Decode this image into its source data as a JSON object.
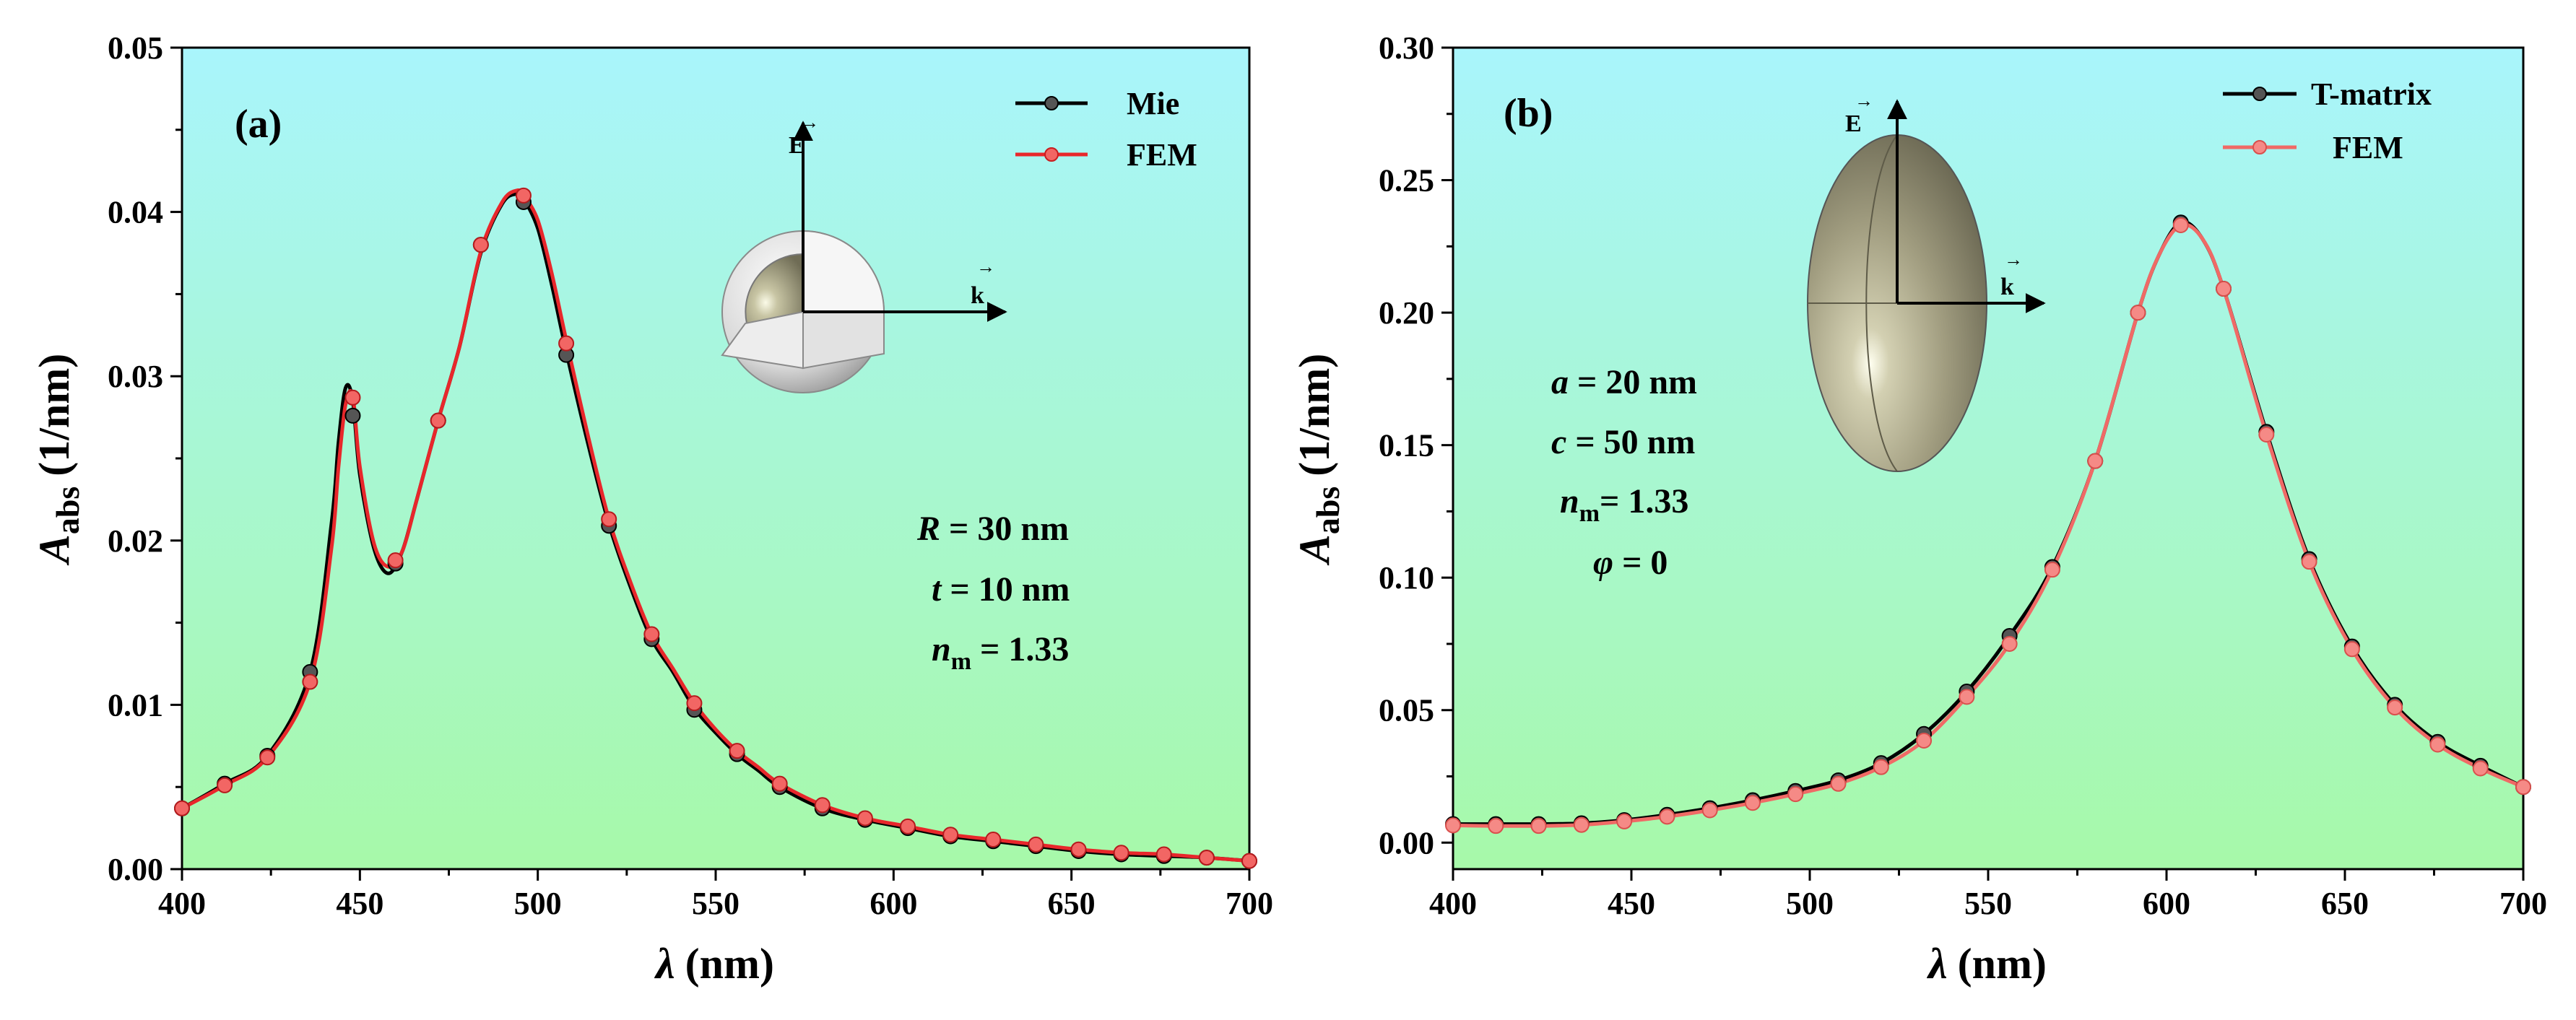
{
  "colors": {
    "bg_top": "#a9f5fc",
    "bg_bottom": "#a7f9a9",
    "series_black": "#000000",
    "series_red": "#e8272b",
    "series_salmon": "#f06a66"
  },
  "chart_data": [
    {
      "type": "line",
      "panel_label": "(a)",
      "xlabel": "λ (nm)",
      "ylabel": "Aabs (1/nm)",
      "ylabel_var": "A",
      "ylabel_sub": "abs",
      "ylabel_unit": "(1/nm)",
      "xlabel_var": "λ",
      "xlabel_unit": "(nm)",
      "xlim": [
        400,
        700
      ],
      "ylim": [
        0,
        0.05
      ],
      "xticks": [
        400,
        450,
        500,
        550,
        600,
        650,
        700
      ],
      "yticks": [
        "0.00",
        "0.01",
        "0.02",
        "0.03",
        "0.04",
        "0.05"
      ],
      "ytick_values": [
        0,
        0.01,
        0.02,
        0.03,
        0.04,
        0.05
      ],
      "legend": {
        "position": "top-right",
        "entries": [
          "Mie",
          "FEM"
        ]
      },
      "annotations": [
        {
          "var": "R",
          "text": " = 30 nm"
        },
        {
          "var": "t",
          "text": " = 10 nm"
        },
        {
          "var": "n",
          "sub": "m",
          "text": " = 1.33"
        }
      ],
      "inset": {
        "shape": "core-shell sphere",
        "e_label": "E",
        "k_label": "k"
      },
      "series": [
        {
          "name": "Mie",
          "color": "#000000",
          "x": [
            400,
            412,
            424,
            436,
            442,
            444,
            446,
            448,
            450,
            454,
            458,
            462,
            466,
            472,
            478,
            484,
            490,
            494,
            496,
            500,
            504,
            508,
            514,
            520,
            526,
            532,
            538,
            544,
            550,
            556,
            562,
            568,
            580,
            592,
            604,
            616,
            628,
            640,
            652,
            664,
            676,
            688,
            700
          ],
          "y": [
            0.0037,
            0.0052,
            0.0069,
            0.012,
            0.021,
            0.026,
            0.0293,
            0.0285,
            0.024,
            0.0195,
            0.018,
            0.0194,
            0.0225,
            0.0273,
            0.0318,
            0.0375,
            0.0405,
            0.0411,
            0.0408,
            0.039,
            0.0355,
            0.0315,
            0.026,
            0.021,
            0.0172,
            0.014,
            0.012,
            0.0098,
            0.0083,
            0.007,
            0.006,
            0.005,
            0.0037,
            0.003,
            0.0025,
            0.002,
            0.0017,
            0.0014,
            0.0011,
            0.0009,
            0.0008,
            0.0007,
            0.0005
          ],
          "markers_x": [
            400,
            412,
            424,
            436,
            448,
            460,
            472,
            484,
            496,
            508,
            520,
            532,
            544,
            556,
            568,
            580,
            592,
            604,
            616,
            628,
            640,
            652,
            664,
            676,
            688,
            700
          ],
          "markers_y": [
            0.0037,
            0.0052,
            0.0069,
            0.012,
            0.0276,
            0.0186,
            0.0273,
            0.038,
            0.0406,
            0.0313,
            0.0209,
            0.014,
            0.0097,
            0.007,
            0.005,
            0.0037,
            0.003,
            0.0025,
            0.002,
            0.0017,
            0.0014,
            0.0011,
            0.0009,
            0.0008,
            0.0007,
            0.0005
          ]
        },
        {
          "name": "FEM",
          "color": "#e8272b",
          "x": [
            400,
            412,
            424,
            436,
            442,
            444,
            446,
            448,
            450,
            454,
            458,
            462,
            466,
            472,
            478,
            484,
            490,
            494,
            496,
            500,
            504,
            508,
            514,
            520,
            526,
            532,
            538,
            544,
            550,
            556,
            562,
            568,
            580,
            592,
            604,
            616,
            628,
            640,
            652,
            664,
            676,
            688,
            700
          ],
          "y": [
            0.0037,
            0.0051,
            0.0068,
            0.0114,
            0.0195,
            0.0245,
            0.0283,
            0.0288,
            0.0245,
            0.0198,
            0.0184,
            0.0194,
            0.0225,
            0.0273,
            0.0318,
            0.0376,
            0.0406,
            0.0413,
            0.041,
            0.0395,
            0.0362,
            0.0322,
            0.0265,
            0.0213,
            0.0175,
            0.0143,
            0.0122,
            0.0101,
            0.0085,
            0.0072,
            0.0062,
            0.0052,
            0.0039,
            0.0031,
            0.0026,
            0.0021,
            0.0018,
            0.0015,
            0.0012,
            0.001,
            0.0009,
            0.0007,
            0.0005
          ],
          "markers_x": [
            400,
            412,
            424,
            436,
            448,
            460,
            472,
            484,
            496,
            508,
            520,
            532,
            544,
            556,
            568,
            580,
            592,
            604,
            616,
            628,
            640,
            652,
            664,
            676,
            688,
            700
          ],
          "markers_y": [
            0.0037,
            0.0051,
            0.0068,
            0.0114,
            0.0287,
            0.0188,
            0.0273,
            0.038,
            0.041,
            0.032,
            0.0213,
            0.0143,
            0.0101,
            0.0072,
            0.0052,
            0.0039,
            0.0031,
            0.0026,
            0.0021,
            0.0018,
            0.0015,
            0.0012,
            0.001,
            0.0009,
            0.0007,
            0.0005
          ]
        }
      ]
    },
    {
      "type": "line",
      "panel_label": "(b)",
      "xlabel": "λ (nm)",
      "ylabel": "Aabs (1/nm)",
      "ylabel_var": "A",
      "ylabel_sub": "abs",
      "ylabel_unit": "(1/nm)",
      "xlabel_var": "λ",
      "xlabel_unit": "(nm)",
      "xlim": [
        400,
        700
      ],
      "ylim": [
        -0.01,
        0.3
      ],
      "xticks": [
        400,
        450,
        500,
        550,
        600,
        650,
        700
      ],
      "yticks": [
        "0.00",
        "0.05",
        "0.10",
        "0.15",
        "0.20",
        "0.25",
        "0.30"
      ],
      "ytick_values": [
        0,
        0.05,
        0.1,
        0.15,
        0.2,
        0.25,
        0.3
      ],
      "legend": {
        "position": "top-right",
        "entries": [
          "T-matrix",
          "FEM"
        ]
      },
      "annotations": [
        {
          "var": "a",
          "text": " = 20 nm"
        },
        {
          "var": "c",
          "text": " = 50 nm"
        },
        {
          "var": "n",
          "sub": "m",
          "text": "= 1.33"
        },
        {
          "var": "φ",
          "text": " = 0"
        }
      ],
      "inset": {
        "shape": "prolate spheroid",
        "e_label": "E",
        "k_label": "k"
      },
      "series": [
        {
          "name": "T-matrix",
          "color": "#000000",
          "x": [
            400,
            412,
            424,
            436,
            448,
            460,
            472,
            484,
            496,
            508,
            520,
            532,
            544,
            556,
            568,
            580,
            592,
            598,
            604,
            610,
            616,
            628,
            640,
            652,
            664,
            676,
            688,
            700
          ],
          "y": [
            0.007,
            0.007,
            0.007,
            0.0073,
            0.0085,
            0.0105,
            0.013,
            0.016,
            0.0195,
            0.0235,
            0.03,
            0.041,
            0.057,
            0.078,
            0.104,
            0.144,
            0.2,
            0.222,
            0.234,
            0.228,
            0.209,
            0.155,
            0.107,
            0.074,
            0.052,
            0.038,
            0.029,
            0.021
          ],
          "markers_x": [
            400,
            412,
            424,
            436,
            448,
            460,
            472,
            484,
            496,
            508,
            520,
            532,
            544,
            556,
            568,
            580,
            592,
            604,
            616,
            628,
            640,
            652,
            664,
            676,
            688,
            700
          ],
          "markers_y": [
            0.007,
            0.007,
            0.007,
            0.0073,
            0.0085,
            0.0105,
            0.013,
            0.016,
            0.0195,
            0.0235,
            0.03,
            0.041,
            0.057,
            0.078,
            0.104,
            0.144,
            0.2,
            0.234,
            0.209,
            0.155,
            0.107,
            0.074,
            0.052,
            0.038,
            0.029,
            0.021
          ]
        },
        {
          "name": "FEM",
          "color": "#f06a66",
          "x": [
            400,
            412,
            424,
            436,
            448,
            460,
            472,
            484,
            496,
            508,
            520,
            532,
            544,
            556,
            568,
            580,
            592,
            598,
            604,
            610,
            616,
            628,
            640,
            652,
            664,
            676,
            688,
            700
          ],
          "y": [
            0.0065,
            0.0063,
            0.0063,
            0.0067,
            0.008,
            0.0098,
            0.0122,
            0.015,
            0.0183,
            0.0222,
            0.0285,
            0.0385,
            0.055,
            0.075,
            0.103,
            0.144,
            0.2,
            0.222,
            0.233,
            0.228,
            0.209,
            0.154,
            0.106,
            0.073,
            0.051,
            0.037,
            0.028,
            0.021
          ],
          "markers_x": [
            400,
            412,
            424,
            436,
            448,
            460,
            472,
            484,
            496,
            508,
            520,
            532,
            544,
            556,
            568,
            580,
            592,
            604,
            616,
            628,
            640,
            652,
            664,
            676,
            688,
            700
          ],
          "markers_y": [
            0.0065,
            0.0063,
            0.0063,
            0.0067,
            0.008,
            0.0098,
            0.0122,
            0.015,
            0.0183,
            0.0222,
            0.0285,
            0.0385,
            0.055,
            0.075,
            0.103,
            0.144,
            0.2,
            0.233,
            0.209,
            0.154,
            0.106,
            0.073,
            0.051,
            0.037,
            0.028,
            0.021
          ]
        }
      ]
    }
  ]
}
